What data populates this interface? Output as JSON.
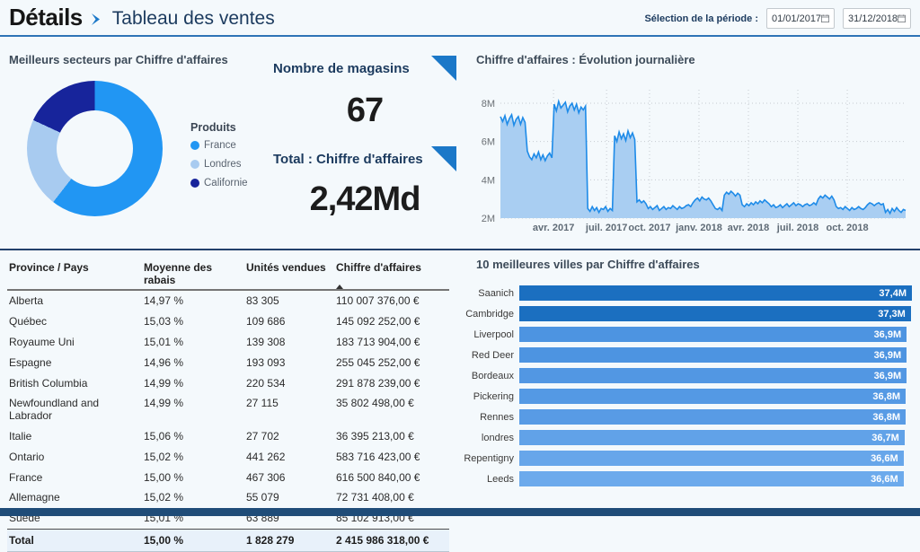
{
  "colors": {
    "accent_blue": "#1B78C8",
    "header_line": "#2E74B6",
    "divider": "#22406B",
    "footer_bar": "#1F4C78",
    "background": "#F4F9FC"
  },
  "icons": {
    "title_arrow": "chevron-right-solid",
    "calendar": "calendar-grid",
    "sort_asc": "triangle-up",
    "kpi_corner": "corner-triangle"
  },
  "header": {
    "title_bold": "Détails",
    "title_rest": "Tableau des ventes",
    "period_label": "Sélection de la période :",
    "date_from": "01/01/2017",
    "date_to": "31/12/2018"
  },
  "kpis": [
    {
      "label": "Nombre de magasins",
      "value": "67"
    },
    {
      "label": "Total : Chiffre d'affaires",
      "value": "2,42Md"
    }
  ],
  "chart_data": [
    {
      "type": "pie",
      "donut": true,
      "title": "Meilleurs secteurs par Chiffre d'affaires",
      "legend_title": "Produits",
      "legend_position": "right",
      "segments": [
        {
          "label": "France",
          "pct": 60.5,
          "color": "#2196F3"
        },
        {
          "label": "Londres",
          "pct": 21.4,
          "color": "#A8CBF0"
        },
        {
          "label": "Californie",
          "pct": 18.1,
          "color": "#17249B"
        }
      ]
    },
    {
      "type": "area",
      "title": "Chiffre d'affaires : Évolution journalière",
      "unit": "M",
      "ylim": [
        2,
        8.7
      ],
      "grid": "dotted",
      "line_color": "#1E8BE8",
      "fill_color": "#A9CEF2",
      "y_ticks": [
        {
          "label": "8M",
          "value": 8
        },
        {
          "label": "6M",
          "value": 6
        },
        {
          "label": "4M",
          "value": 4
        },
        {
          "label": "2M",
          "value": 2
        }
      ],
      "x_ticks": [
        {
          "label": "avr. 2017",
          "f": 0.131
        },
        {
          "label": "juil. 2017",
          "f": 0.262
        },
        {
          "label": "oct. 2017",
          "f": 0.368
        },
        {
          "label": "janv. 2018",
          "f": 0.49
        },
        {
          "label": "avr. 2018",
          "f": 0.612
        },
        {
          "label": "juil. 2018",
          "f": 0.734
        },
        {
          "label": "oct. 2018",
          "f": 0.856
        }
      ],
      "x_range": [
        "janv. 2017",
        "déc. 2018"
      ],
      "values": [
        7.3,
        7.05,
        7.35,
        6.9,
        7.2,
        7.4,
        6.85,
        7.15,
        7.3,
        6.9,
        7.25,
        7.0,
        5.5,
        5.2,
        5.05,
        5.35,
        5.15,
        5.45,
        5.05,
        5.3,
        5.0,
        5.25,
        5.4,
        5.15,
        7.95,
        7.6,
        8.1,
        7.75,
        7.9,
        8.05,
        7.55,
        7.85,
        8.0,
        7.65,
        7.95,
        7.5,
        7.8,
        7.65,
        7.85,
        2.5,
        2.35,
        2.6,
        2.4,
        2.55,
        2.3,
        2.5,
        2.45,
        2.6,
        2.35,
        2.5,
        2.4,
        6.3,
        6.0,
        6.5,
        6.15,
        6.4,
        6.05,
        6.55,
        6.2,
        6.45,
        6.1,
        2.85,
        2.95,
        2.8,
        2.9,
        2.75,
        2.5,
        2.6,
        2.45,
        2.55,
        2.65,
        2.4,
        2.5,
        2.6,
        2.45,
        2.55,
        2.5,
        2.65,
        2.55,
        2.45,
        2.6,
        2.5,
        2.55,
        2.65,
        2.7,
        2.6,
        2.8,
        2.95,
        3.05,
        2.9,
        3.1,
        3.0,
        2.95,
        3.05,
        2.9,
        2.7,
        2.5,
        2.45,
        2.55,
        2.4,
        3.2,
        3.35,
        3.25,
        3.4,
        3.3,
        3.15,
        3.3,
        3.2,
        2.7,
        2.6,
        2.75,
        2.65,
        2.8,
        2.7,
        2.85,
        2.75,
        2.9,
        2.8,
        2.95,
        2.85,
        2.75,
        2.6,
        2.7,
        2.55,
        2.6,
        2.7,
        2.55,
        2.65,
        2.75,
        2.6,
        2.7,
        2.8,
        2.65,
        2.75,
        2.7,
        2.6,
        2.7,
        2.75,
        2.65,
        2.7,
        2.8,
        2.7,
        3.0,
        3.15,
        3.05,
        3.2,
        3.1,
        3.0,
        3.15,
        2.95,
        2.6,
        2.5,
        2.55,
        2.45,
        2.6,
        2.5,
        2.4,
        2.55,
        2.45,
        2.5,
        2.6,
        2.5,
        2.45,
        2.55,
        2.7,
        2.8,
        2.75,
        2.65,
        2.75,
        2.8,
        2.7,
        2.75,
        2.3,
        2.45,
        2.25,
        2.5,
        2.35,
        2.55,
        2.4,
        2.3,
        2.45,
        2.4
      ]
    },
    {
      "type": "table",
      "columns": [
        "Province / Pays",
        "Moyenne des rabais",
        "Unités vendues",
        "Chiffre d'affaires"
      ],
      "sort_column_index": 3,
      "rows": [
        [
          "Alberta",
          "14,97 %",
          "83 305",
          "110 007 376,00 €"
        ],
        [
          "Québec",
          "15,03 %",
          "109 686",
          "145 092 252,00 €"
        ],
        [
          "Royaume Uni",
          "15,01 %",
          "139 308",
          "183 713 904,00 €"
        ],
        [
          "Espagne",
          "14,96 %",
          "193 093",
          "255 045 252,00 €"
        ],
        [
          "British Columbia",
          "14,99 %",
          "220 534",
          "291 878 239,00 €"
        ],
        [
          "Newfoundland and Labrador",
          "14,99 %",
          "27 115",
          "35 802 498,00 €"
        ],
        [
          "Italie",
          "15,06 %",
          "27 702",
          "36 395 213,00 €"
        ],
        [
          "Ontario",
          "15,02 %",
          "441 262",
          "583 716 423,00 €"
        ],
        [
          "France",
          "15,00 %",
          "467 306",
          "616 500 840,00 €"
        ],
        [
          "Allemagne",
          "15,02 %",
          "55 079",
          "72 731 408,00 €"
        ],
        [
          "Suède",
          "15,01 %",
          "63 889",
          "85 102 913,00 €"
        ]
      ],
      "total_row": [
        "Total",
        "15,00 %",
        "1 828 279",
        "2 415 986 318,00 €"
      ]
    },
    {
      "type": "bar",
      "orientation": "horizontal",
      "title": "10 meilleures villes par Chiffre d'affaires",
      "categories": [
        "Saanich",
        "Cambridge",
        "Liverpool",
        "Red Deer",
        "Bordeaux",
        "Pickering",
        "Rennes",
        "londres",
        "Repentigny",
        "Leeds"
      ],
      "values": [
        37.4,
        37.3,
        36.9,
        36.9,
        36.9,
        36.8,
        36.8,
        36.7,
        36.6,
        36.6
      ],
      "labels": [
        "37,4M",
        "37,3M",
        "36,9M",
        "36,9M",
        "36,9M",
        "36,8M",
        "36,8M",
        "36,7M",
        "36,6M",
        "36,6M"
      ],
      "colors": [
        "#1B6FC0",
        "#1B6FC0",
        "#4D94E1",
        "#4D94E1",
        "#5297E3",
        "#5499E4",
        "#589BE5",
        "#61A2E8",
        "#67A6EA",
        "#6CAAEC"
      ],
      "xlim": [
        0,
        37.4
      ]
    }
  ]
}
